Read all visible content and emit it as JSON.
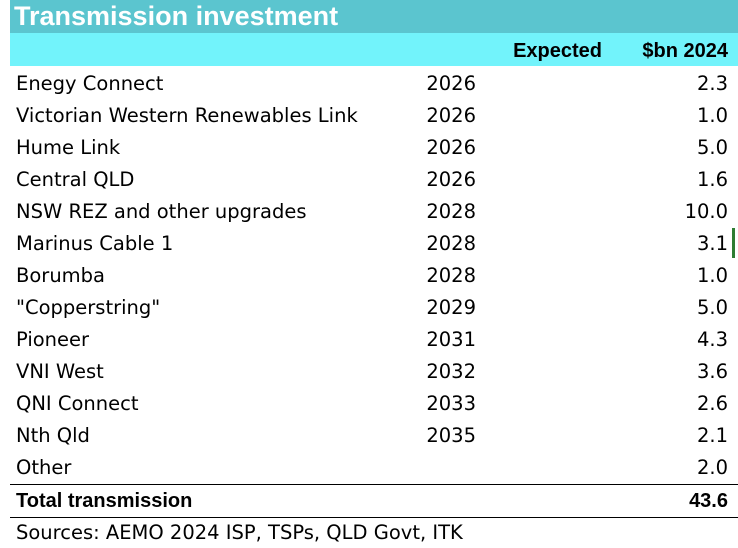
{
  "chart_data": {
    "type": "table",
    "title": "Transmission investment",
    "columns": [
      "",
      "Expected",
      "$bn 2024"
    ],
    "rows": [
      {
        "name": "Enegy Connect",
        "expected": "2026",
        "value": "2.3"
      },
      {
        "name": "Victorian Western Renewables Link",
        "expected": "2026",
        "value": "1.0"
      },
      {
        "name": "Hume Link",
        "expected": "2026",
        "value": "5.0"
      },
      {
        "name": "Central QLD",
        "expected": "2026",
        "value": "1.6"
      },
      {
        "name": "NSW REZ and other upgrades",
        "expected": "2028",
        "value": "10.0"
      },
      {
        "name": "Marinus Cable 1",
        "expected": "2028",
        "value": "3.1"
      },
      {
        "name": "Borumba",
        "expected": "2028",
        "value": "1.0"
      },
      {
        "name": "\"Copperstring\"",
        "expected": "2029",
        "value": "5.0"
      },
      {
        "name": "Pioneer",
        "expected": "2031",
        "value": "4.3"
      },
      {
        "name": "VNI West",
        "expected": "2032",
        "value": "3.6"
      },
      {
        "name": "QNI Connect",
        "expected": "2033",
        "value": "2.6"
      },
      {
        "name": "Nth Qld",
        "expected": "2035",
        "value": "2.1"
      },
      {
        "name": "Other",
        "expected": "",
        "value": "2.0"
      }
    ],
    "total": {
      "name": "Total transmission",
      "value": "43.6"
    },
    "source": "Sources: AEMO 2024 ISP, TSPs, QLD Govt, ITK"
  },
  "colors": {
    "title_bg": "#5bc5cf",
    "header_bg": "#72f3fb",
    "title_text": "#ffffff",
    "cell_cursor": "#2e7d32"
  }
}
